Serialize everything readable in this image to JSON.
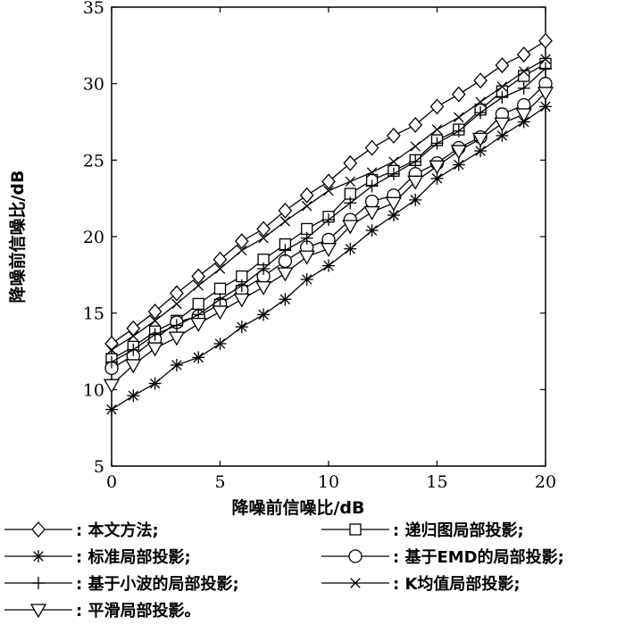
{
  "chart_data": {
    "type": "line",
    "xlabel": "降噪前信噪比/dB",
    "ylabel": "降噪前信噪比/dB",
    "xlim": [
      0,
      20
    ],
    "ylim": [
      5,
      35
    ],
    "xticks": [
      "0",
      "5",
      "10",
      "15",
      "20"
    ],
    "yticks": [
      "5",
      "10",
      "15",
      "20",
      "25",
      "30",
      "35"
    ],
    "x": [
      0,
      1,
      2,
      3,
      4,
      5,
      6,
      7,
      8,
      9,
      10,
      11,
      12,
      13,
      14,
      15,
      16,
      17,
      18,
      19,
      20
    ],
    "series": [
      {
        "name": ": 本文方法;",
        "marker": "diamond",
        "values": [
          13.0,
          14.0,
          15.1,
          16.3,
          17.4,
          18.5,
          19.7,
          20.5,
          21.7,
          22.7,
          23.6,
          24.8,
          25.8,
          26.6,
          27.3,
          28.5,
          29.3,
          30.2,
          31.2,
          31.9,
          32.8
        ]
      },
      {
        "name": ": 递归图局部投影;",
        "marker": "square",
        "values": [
          12.0,
          12.8,
          13.8,
          14.5,
          15.6,
          16.6,
          17.4,
          18.5,
          19.5,
          20.5,
          21.3,
          22.8,
          23.7,
          24.3,
          25.0,
          26.3,
          27.0,
          28.3,
          29.5,
          30.5,
          31.3
        ]
      },
      {
        "name": ": 标准局部投影;",
        "marker": "asterisk",
        "values": [
          8.7,
          9.6,
          10.4,
          11.6,
          12.1,
          13.0,
          14.1,
          14.9,
          15.9,
          17.2,
          18.1,
          19.2,
          20.4,
          21.4,
          22.4,
          23.8,
          24.7,
          25.6,
          26.6,
          27.5,
          28.5
        ]
      },
      {
        "name": ": 基于EMD的局部投影;",
        "marker": "circle",
        "values": [
          11.4,
          12.2,
          13.3,
          14.4,
          14.8,
          15.6,
          16.5,
          17.4,
          18.4,
          19.3,
          19.8,
          21.1,
          22.3,
          22.7,
          24.1,
          24.8,
          25.8,
          26.5,
          28.0,
          28.6,
          30.0
        ]
      },
      {
        "name": ": 基于小波的局部投影;",
        "marker": "plus",
        "values": [
          11.8,
          12.6,
          13.6,
          14.2,
          14.9,
          15.9,
          16.8,
          17.9,
          19.1,
          19.9,
          21.1,
          22.2,
          23.3,
          24.1,
          24.9,
          26.1,
          26.9,
          28.1,
          29.1,
          29.7,
          31.0
        ]
      },
      {
        "name": ": K均值局部投影;",
        "marker": "cross",
        "values": [
          12.6,
          13.5,
          14.5,
          15.6,
          16.8,
          17.9,
          19.1,
          19.9,
          21.0,
          22.0,
          23.0,
          23.6,
          24.2,
          24.9,
          25.9,
          27.0,
          27.8,
          28.8,
          29.8,
          30.8,
          31.6
        ]
      },
      {
        "name": ": 平滑局部投影。",
        "marker": "triangle-down",
        "values": [
          10.3,
          11.6,
          12.7,
          13.4,
          14.3,
          15.1,
          15.9,
          16.7,
          17.6,
          18.7,
          19.2,
          20.7,
          21.6,
          22.2,
          23.6,
          24.6,
          25.6,
          26.4,
          27.4,
          28.0,
          29.4
        ]
      }
    ],
    "legend_placement": "bottom",
    "legend_order": [
      0,
      1,
      2,
      3,
      4,
      5,
      6
    ]
  }
}
